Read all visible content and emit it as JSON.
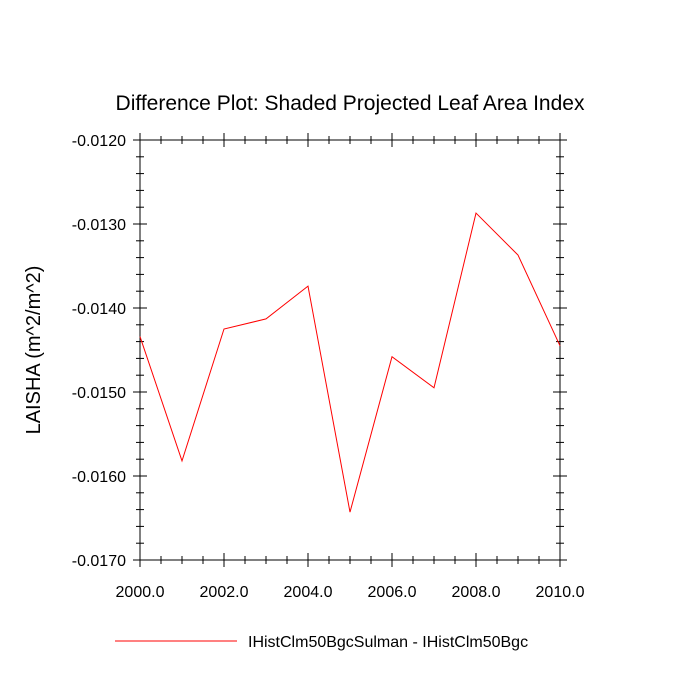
{
  "chart_data": {
    "type": "line",
    "title": "Difference Plot: Shaded Projected Leaf Area Index",
    "xlabel": "",
    "ylabel": "LAISHA  (m^2/m^2)",
    "xlim": [
      2000,
      2010
    ],
    "ylim": [
      -0.017,
      -0.012
    ],
    "x_ticks": [
      "2000.0",
      "2002.0",
      "2004.0",
      "2006.0",
      "2008.0",
      "2010.0"
    ],
    "y_ticks": [
      "-0.0120",
      "-0.0130",
      "-0.0140",
      "-0.0150",
      "-0.0160",
      "-0.0170"
    ],
    "grid": false,
    "legend_position": "bottom",
    "series": [
      {
        "name": "IHistClm50BgcSulman - IHistClm50Bgc",
        "color": "#ff0000",
        "x": [
          2000,
          2001,
          2002,
          2003,
          2004,
          2005,
          2006,
          2007,
          2008,
          2009,
          2010
        ],
        "y": [
          -0.01434,
          -0.01582,
          -0.01425,
          -0.01413,
          -0.01374,
          -0.01643,
          -0.01458,
          -0.01495,
          -0.01287,
          -0.01337,
          -0.01445
        ]
      }
    ]
  }
}
